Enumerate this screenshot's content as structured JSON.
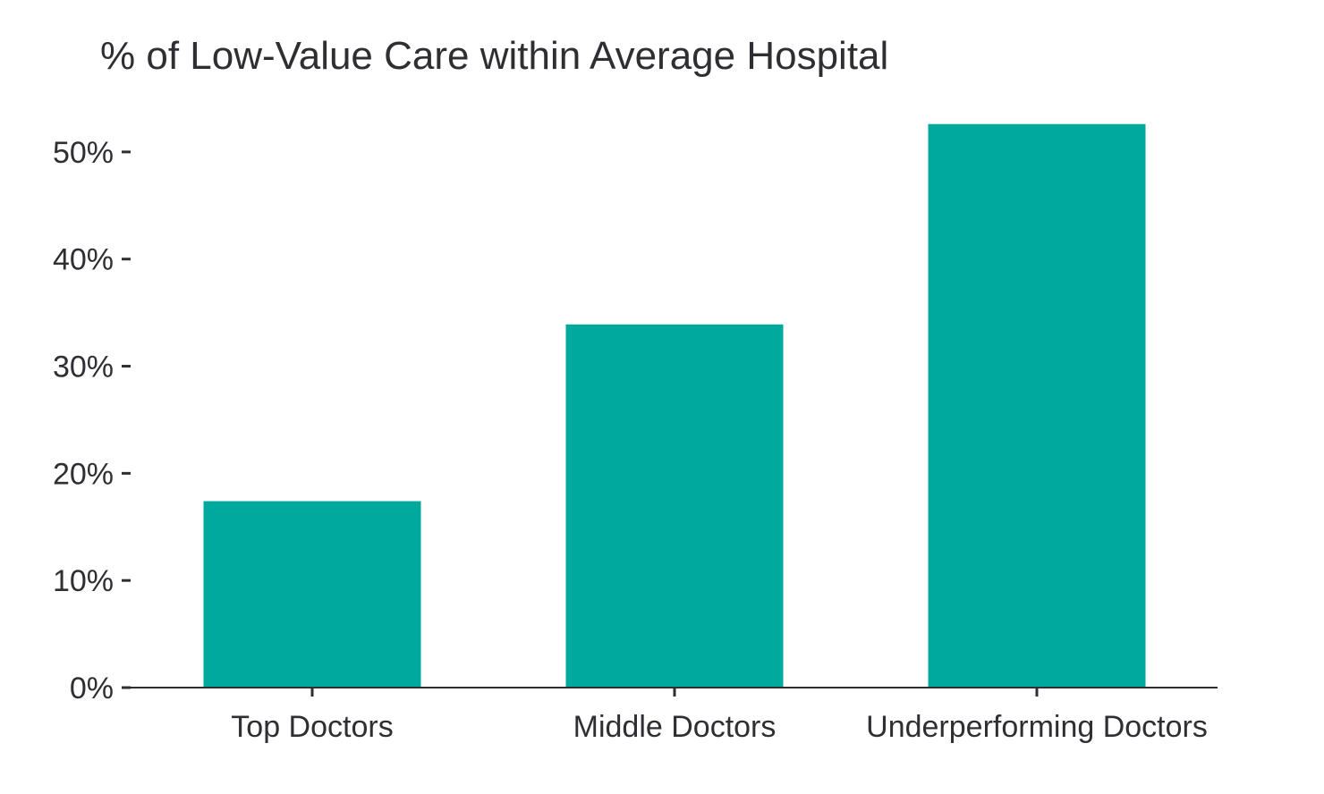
{
  "chart_data": {
    "type": "bar",
    "title": "% of Low-Value Care within Average Hospital",
    "xlabel": "",
    "ylabel": "",
    "categories": [
      "Top Doctors",
      "Middle Doctors",
      "Underperforming Doctors"
    ],
    "values": [
      17.4,
      33.9,
      52.6
    ],
    "ylim": [
      0,
      55
    ],
    "yticks": [
      0,
      10,
      20,
      30,
      40,
      50
    ],
    "ytick_labels": [
      "0%",
      "10%",
      "20%",
      "30%",
      "40%",
      "50%"
    ],
    "grid": false,
    "legend": "none",
    "bar_color": "#00A99D",
    "axis_color": "#2f2f33",
    "text_color": "#2f2f33"
  }
}
